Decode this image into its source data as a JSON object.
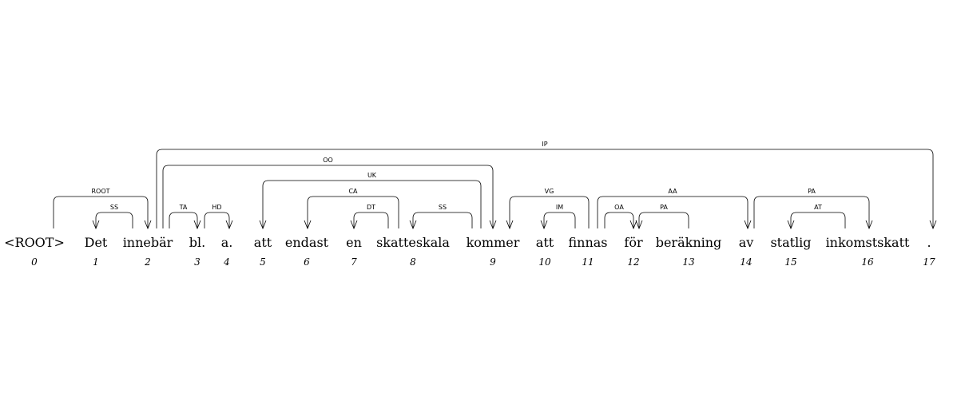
{
  "tokens": [
    {
      "index": "0",
      "word": "<ROOT>"
    },
    {
      "index": "1",
      "word": "Det"
    },
    {
      "index": "2",
      "word": "innebär"
    },
    {
      "index": "3",
      "word": "bl."
    },
    {
      "index": "4",
      "word": "a."
    },
    {
      "index": "5",
      "word": "att"
    },
    {
      "index": "6",
      "word": "endast"
    },
    {
      "index": "7",
      "word": "en"
    },
    {
      "index": "8",
      "word": "skatteskala"
    },
    {
      "index": "9",
      "word": "kommer"
    },
    {
      "index": "10",
      "word": "att"
    },
    {
      "index": "11",
      "word": "finnas"
    },
    {
      "index": "12",
      "word": "för"
    },
    {
      "index": "13",
      "word": "beräkning"
    },
    {
      "index": "14",
      "word": "av"
    },
    {
      "index": "15",
      "word": "statlig"
    },
    {
      "index": "16",
      "word": "inkomstskatt"
    },
    {
      "index": "17",
      "word": "."
    }
  ],
  "arcs": [
    {
      "from": 0,
      "to": 2,
      "label": "ROOT"
    },
    {
      "from": 2,
      "to": 1,
      "label": "SS"
    },
    {
      "from": 2,
      "to": 3,
      "label": "TA"
    },
    {
      "from": 3,
      "to": 4,
      "label": "HD"
    },
    {
      "from": 2,
      "to": 9,
      "label": "OO"
    },
    {
      "from": 9,
      "to": 5,
      "label": "UK"
    },
    {
      "from": 8,
      "to": 6,
      "label": "CA"
    },
    {
      "from": 8,
      "to": 7,
      "label": "DT"
    },
    {
      "from": 9,
      "to": 8,
      "label": "SS"
    },
    {
      "from": 2,
      "to": 17,
      "label": "IP"
    },
    {
      "from": 11,
      "to": 9,
      "label": "VG"
    },
    {
      "from": 11,
      "to": 10,
      "label": "IM"
    },
    {
      "from": 11,
      "to": 14,
      "label": "AA"
    },
    {
      "from": 12,
      "to": 13,
      "label": "OA"
    },
    {
      "from": 13,
      "to": 12,
      "label": "PA"
    },
    {
      "from": 14,
      "to": 16,
      "label": "PA"
    },
    {
      "from": 16,
      "to": 15,
      "label": "AT"
    }
  ]
}
